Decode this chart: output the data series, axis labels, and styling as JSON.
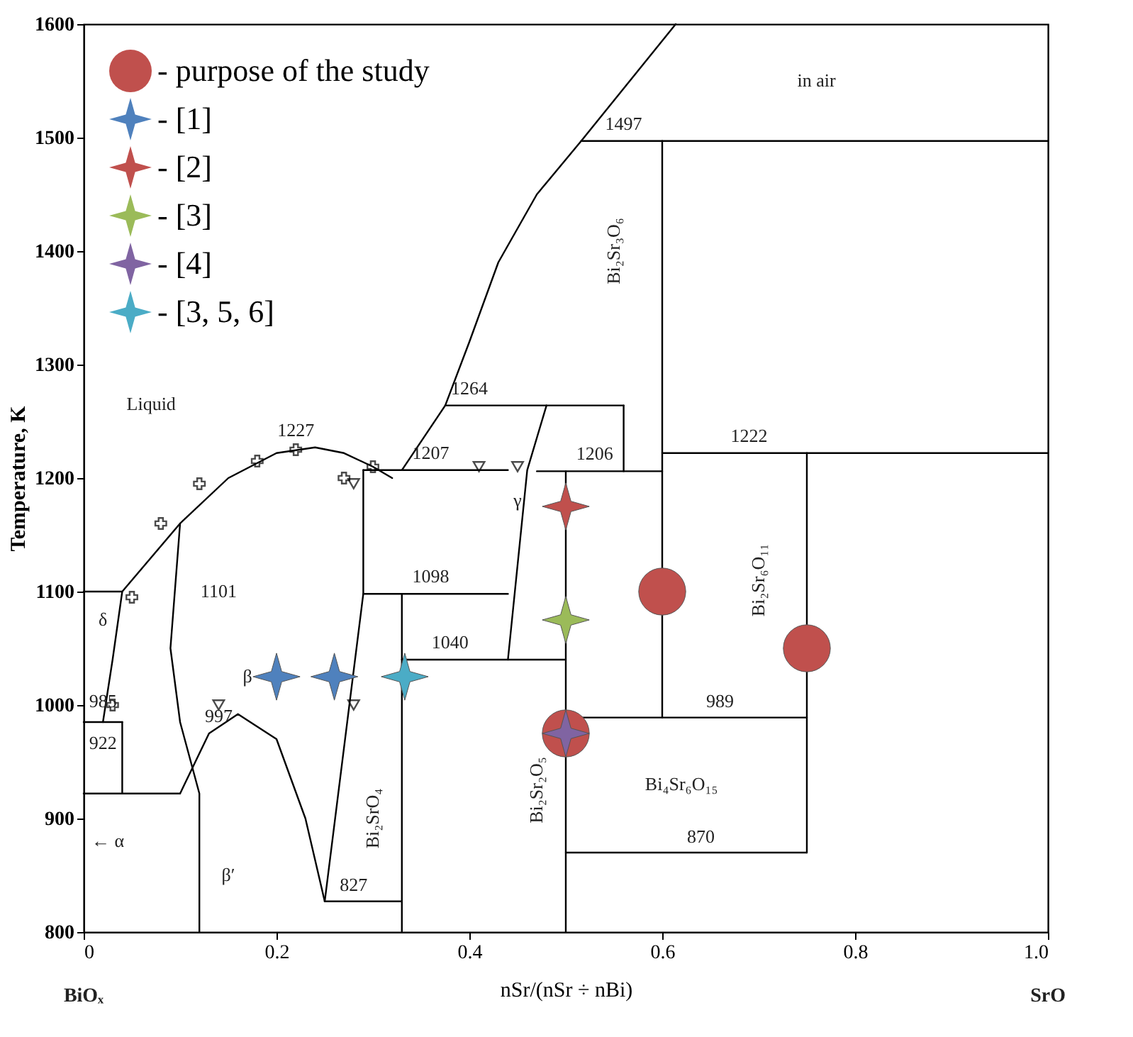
{
  "chart_data": {
    "type": "scatter",
    "xlabel": "nSr/(nSr ÷ nBi)",
    "ylabel": "Temperature, K",
    "xlim": [
      0,
      1.0
    ],
    "ylim": [
      800,
      1600
    ],
    "xticks": [
      0,
      0.2,
      0.4,
      0.6,
      0.8,
      {
        "value": 1.0,
        "label": "1.0"
      }
    ],
    "yticks": [
      800,
      900,
      1000,
      1100,
      1200,
      1300,
      1400,
      1500,
      1600
    ],
    "grid": false,
    "legend": "top left",
    "series": [
      {
        "name": "- purpose of the study",
        "marker": "circle",
        "color": "#c0504d",
        "x": [
          0.5,
          0.6,
          0.75
        ],
        "values": [
          975,
          1100,
          1050
        ]
      },
      {
        "name": "- [1]",
        "marker": "star",
        "color": "#4f81bd",
        "x": [
          0.2,
          0.26
        ],
        "values": [
          1025,
          1025
        ]
      },
      {
        "name": "- [2]",
        "marker": "star",
        "color": "#c0504d",
        "x": [
          0.5
        ],
        "values": [
          1175
        ]
      },
      {
        "name": "- [3]",
        "marker": "star",
        "color": "#9bbb59",
        "x": [
          0.5
        ],
        "values": [
          1075
        ]
      },
      {
        "name": "- [4]",
        "marker": "star",
        "color": "#8064a2",
        "x": [
          0.5
        ],
        "values": [
          975
        ]
      },
      {
        "name": "- [3, 5, 6]",
        "marker": "star",
        "color": "#4bacc6",
        "x": [
          0.333
        ],
        "values": [
          1025
        ]
      },
      {
        "marker": "cross",
        "color": "#000000",
        "x": [
          0.03,
          0.05,
          0.08,
          0.12,
          0.18,
          0.22,
          0.27,
          0.3
        ],
        "values": [
          1000,
          1095,
          1160,
          1195,
          1215,
          1225,
          1200,
          1210
        ]
      },
      {
        "marker": "triangle",
        "color": "#000000",
        "x": [
          0.14,
          0.28,
          0.28,
          0.41,
          0.45
        ],
        "values": [
          1000,
          1195,
          1000,
          1210,
          1210
        ]
      },
      {
        "type": "line",
        "color": "#000000",
        "x": [
          0,
          0.04,
          0.07,
          0.1,
          0.15,
          0.2,
          0.24,
          0.27,
          0.3,
          0.32
        ],
        "values": [
          1100,
          1100,
          1130,
          1160,
          1200,
          1222,
          1227,
          1222,
          1210,
          1200
        ]
      },
      {
        "type": "line",
        "color": "#000000",
        "x": [
          0.29,
          0.44
        ],
        "values": [
          1207,
          1207
        ]
      },
      {
        "type": "line",
        "color": "#000000",
        "x": [
          0.29,
          0.29,
          0.25
        ],
        "values": [
          1207,
          1098,
          827
        ]
      },
      {
        "type": "line",
        "color": "#000000",
        "x": [
          0.29,
          0.44
        ],
        "values": [
          1098,
          1098
        ]
      },
      {
        "type": "line",
        "color": "#000000",
        "x": [
          0.33,
          0.5
        ],
        "values": [
          1040,
          1040
        ]
      },
      {
        "type": "line",
        "color": "#000000",
        "x": [
          0.33,
          0.33
        ],
        "values": [
          1098,
          800
        ]
      },
      {
        "type": "line",
        "color": "#000000",
        "x": [
          0.25,
          0.33
        ],
        "values": [
          827,
          827
        ]
      },
      {
        "type": "line",
        "color": "#000000",
        "x": [
          0.44,
          0.46,
          0.48
        ],
        "values": [
          1040,
          1207,
          1264
        ]
      },
      {
        "type": "line",
        "color": "#000000",
        "x": [
          0.375,
          0.56
        ],
        "values": [
          1264,
          1264
        ]
      },
      {
        "type": "line",
        "color": "#000000",
        "x": [
          0.33,
          0.375,
          0.4,
          0.43,
          0.47,
          0.516,
          0.614
        ],
        "values": [
          1207,
          1264,
          1320,
          1390,
          1450,
          1497,
          1600
        ]
      },
      {
        "type": "line",
        "color": "#000000",
        "x": [
          0.516,
          1.0
        ],
        "values": [
          1497,
          1497
        ]
      },
      {
        "type": "line",
        "color": "#000000",
        "x": [
          0.6,
          0.6
        ],
        "values": [
          1497,
          989
        ]
      },
      {
        "type": "line",
        "color": "#000000",
        "x": [
          0.6,
          1.0
        ],
        "values": [
          1222,
          1222
        ]
      },
      {
        "type": "line",
        "color": "#000000",
        "x": [
          0.75,
          0.75
        ],
        "values": [
          1222,
          870
        ]
      },
      {
        "type": "line",
        "color": "#000000",
        "x": [
          0.5,
          0.75
        ],
        "values": [
          989,
          989
        ]
      },
      {
        "type": "line",
        "color": "#000000",
        "x": [
          0.5,
          0.75
        ],
        "values": [
          870,
          870
        ]
      },
      {
        "type": "line",
        "color": "#000000",
        "x": [
          0.5,
          0.5
        ],
        "values": [
          1206,
          800
        ]
      },
      {
        "type": "line",
        "color": "#000000",
        "x": [
          0.47,
          0.6
        ],
        "values": [
          1206,
          1206
        ]
      },
      {
        "type": "line",
        "color": "#000000",
        "x": [
          0.56,
          0.56
        ],
        "values": [
          1264,
          1206
        ]
      },
      {
        "type": "line",
        "color": "#000000",
        "x": [
          0,
          0.04
        ],
        "values": [
          985,
          985
        ]
      },
      {
        "type": "line",
        "color": "#000000",
        "x": [
          0.04,
          0.03,
          0.02
        ],
        "values": [
          1100,
          1040,
          985
        ]
      },
      {
        "type": "line",
        "color": "#000000",
        "x": [
          0,
          0.1
        ],
        "values": [
          922,
          922
        ]
      },
      {
        "type": "line",
        "color": "#000000",
        "x": [
          0.04,
          0.04
        ],
        "values": [
          985,
          922
        ]
      },
      {
        "type": "line",
        "color": "#000000",
        "x": [
          0.1,
          0.09,
          0.1,
          0.12,
          0.12
        ],
        "values": [
          1160,
          1050,
          985,
          922,
          800
        ]
      },
      {
        "type": "line",
        "color": "#000000",
        "x": [
          0.1,
          0.13,
          0.16,
          0.2,
          0.23,
          0.25
        ],
        "values": [
          922,
          975,
          992,
          970,
          900,
          827
        ]
      }
    ],
    "annotations": [
      "in air",
      "1497",
      "1264",
      "1207",
      "1206",
      "1222",
      "1227",
      "1101",
      "1098",
      "1040",
      "997",
      "985",
      "922",
      "989",
      "870",
      "827",
      "Liquid",
      "δ",
      "β",
      "β′",
      "← α",
      "γ",
      "Bi₂Sr₃O₆",
      "Bi₂Sr₆O₁₁",
      "Bi₂SrO₄",
      "Bi₂Sr₂O₅",
      "Bi₄Sr₆O₁₅",
      "BiOₓ",
      "SrO"
    ]
  }
}
